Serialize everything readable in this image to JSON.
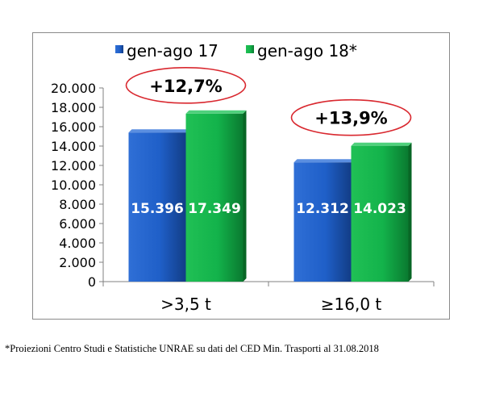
{
  "chart_data": {
    "type": "bar",
    "categories": [
      ">3,5 t",
      "≥16,0 t"
    ],
    "series": [
      {
        "name": "gen-ago 17",
        "values": [
          15396,
          12312
        ],
        "labels": [
          "15.396",
          "12.312"
        ],
        "color": "#1f5fc8"
      },
      {
        "name": "gen-ago 18*",
        "values": [
          17349,
          14023
        ],
        "labels": [
          "17.349",
          "14.023"
        ],
        "color": "#13b34b"
      }
    ],
    "y_ticks": [
      "0",
      "2.000",
      "4.000",
      "6.000",
      "8.000",
      "10.000",
      "12.000",
      "14.000",
      "16.000",
      "18.000",
      "20.000"
    ],
    "ylim": [
      0,
      20000
    ],
    "legend_position": "top",
    "annotations": [
      {
        "category": ">3,5 t",
        "text": "+12,7%"
      },
      {
        "category": "≥16,0 t",
        "text": "+13,9%"
      }
    ],
    "annotation_color": "#d9282f",
    "title": "",
    "xlabel": "",
    "ylabel": ""
  },
  "footnote": "*Proiezioni Centro Studi e Statistiche UNRAE su dati del CED Min. Trasporti al 31.08.2018"
}
